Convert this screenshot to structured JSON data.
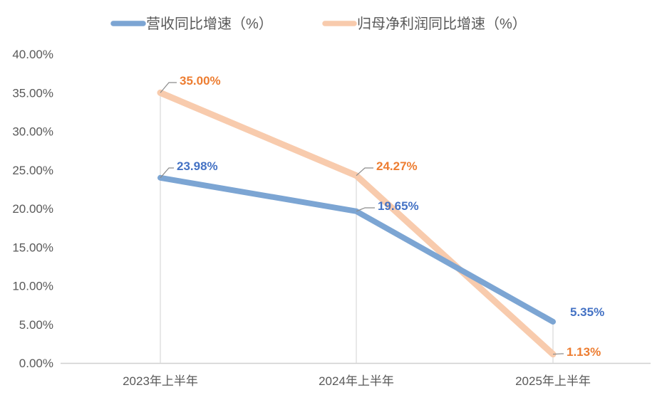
{
  "chart_data": {
    "type": "line",
    "title": "",
    "categories": [
      "2023年上半年",
      "2024年上半年",
      "2025年上半年"
    ],
    "series": [
      {
        "name": "营收同比增速（%）",
        "values": [
          23.98,
          19.65,
          5.35
        ],
        "labels": [
          "23.98%",
          "19.65%",
          "5.35%"
        ],
        "color": "#7CA5D3",
        "label_color": "#4472C4"
      },
      {
        "name": "归母净利润同比增速（%）",
        "values": [
          35.0,
          24.27,
          1.13
        ],
        "labels": [
          "35.00%",
          "24.27%",
          "1.13%"
        ],
        "color": "#F8CBAD",
        "label_color": "#ED7D31"
      }
    ],
    "y_tick_labels": [
      "40.00%",
      "35.00%",
      "30.00%",
      "25.00%",
      "20.00%",
      "15.00%",
      "10.00%",
      "5.00%",
      "0.00%"
    ],
    "ylim": [
      0,
      40
    ],
    "y_tick_step": 5,
    "grid": false,
    "legend_position": "top",
    "colors": {
      "axis_line": "#D0D0D0",
      "drop_line": "#D9D9D9",
      "leader_line": "#8C8C8C",
      "tick_text": "#595959",
      "legend_text": "#595959",
      "background": "#FFFFFF"
    }
  }
}
